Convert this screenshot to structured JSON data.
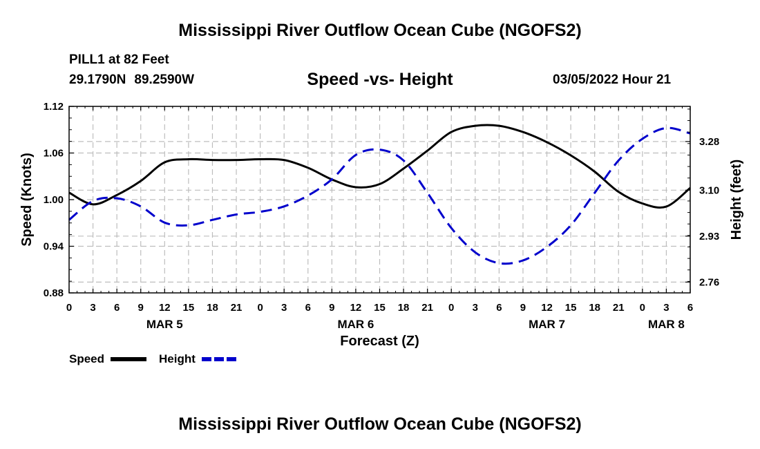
{
  "header": {
    "title": "Mississippi River Outflow Ocean Cube (NGOFS2)",
    "station": "PILL1 at 82 Feet",
    "latitude": "29.1790N",
    "longitude": "89.2590W",
    "subtitle": "Speed -vs- Height",
    "datetime": "03/05/2022 Hour 21"
  },
  "footer": {
    "title": "Mississippi River Outflow Ocean Cube (NGOFS2)"
  },
  "chart_data": {
    "type": "line",
    "title": "Speed -vs- Height",
    "xlabel": "Forecast (Z)",
    "ylabel": "Speed (Knots)",
    "y2label": "Height (feet)",
    "x_range_hours": [
      0,
      78
    ],
    "x_tick_step_hours": 3,
    "x_tick_labels": [
      "0",
      "3",
      "6",
      "9",
      "12",
      "15",
      "18",
      "21",
      "0",
      "3",
      "6",
      "9",
      "12",
      "15",
      "18",
      "21",
      "0",
      "3",
      "6",
      "9",
      "12",
      "15",
      "18",
      "21",
      "0",
      "3",
      "6"
    ],
    "date_labels": [
      {
        "label": "MAR 5",
        "hour": 12
      },
      {
        "label": "MAR 6",
        "hour": 36
      },
      {
        "label": "MAR 7",
        "hour": 60
      },
      {
        "label": "MAR 8",
        "hour": 75
      }
    ],
    "ylim": [
      0.88,
      1.12
    ],
    "y_ticks": [
      "0.88",
      "0.94",
      "1.00",
      "1.06",
      "1.12"
    ],
    "y2lim": [
      2.72,
      3.41
    ],
    "y2_ticks": [
      "2.76",
      "2.93",
      "3.10",
      "3.28"
    ],
    "grid": true,
    "series": [
      {
        "name": "Speed",
        "axis": "left",
        "color": "#000000",
        "dash": "solid",
        "x": [
          0,
          3,
          6,
          9,
          12,
          15,
          18,
          21,
          24,
          27,
          30,
          33,
          36,
          39,
          42,
          45,
          48,
          51,
          54,
          57,
          60,
          63,
          66,
          69,
          72,
          75,
          78
        ],
        "values": [
          1.009,
          0.994,
          1.006,
          1.024,
          1.048,
          1.052,
          1.051,
          1.051,
          1.052,
          1.051,
          1.041,
          1.026,
          1.016,
          1.02,
          1.04,
          1.063,
          1.087,
          1.095,
          1.095,
          1.087,
          1.074,
          1.057,
          1.036,
          1.01,
          0.995,
          0.991,
          1.015
        ]
      },
      {
        "name": "Height",
        "axis": "right",
        "color": "#0000cc",
        "dash": "dashed",
        "x": [
          0,
          3,
          6,
          9,
          12,
          15,
          18,
          21,
          24,
          27,
          30,
          33,
          36,
          39,
          42,
          45,
          48,
          51,
          54,
          57,
          60,
          63,
          66,
          69,
          72,
          75,
          78
        ],
        "values": [
          2.99,
          3.06,
          3.07,
          3.04,
          2.98,
          2.97,
          2.99,
          3.01,
          3.02,
          3.04,
          3.08,
          3.14,
          3.23,
          3.25,
          3.21,
          3.09,
          2.96,
          2.87,
          2.83,
          2.84,
          2.89,
          2.97,
          3.09,
          3.21,
          3.29,
          3.33,
          3.31
        ]
      }
    ]
  }
}
